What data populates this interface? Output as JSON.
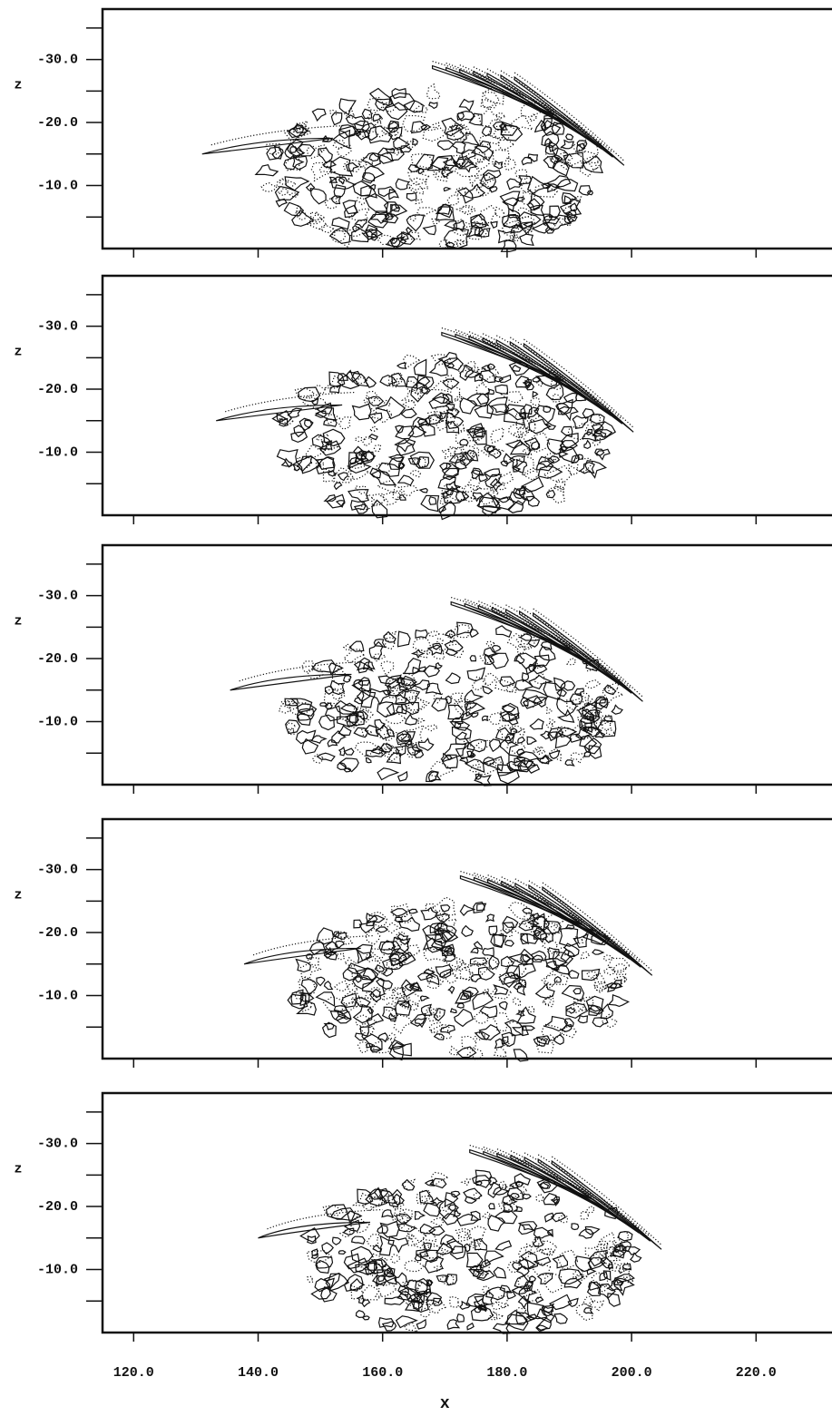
{
  "chart_data": [
    {
      "type": "contour",
      "ylabel": "z",
      "xlim": [
        115,
        232.2
      ],
      "ylim": [
        0,
        -38
      ],
      "xticks": [
        120,
        140,
        160,
        180,
        200,
        220
      ],
      "yticks": [
        {
          "value": -30,
          "label": "-30.0"
        },
        {
          "value": -20,
          "label": "-20.0"
        },
        {
          "value": -10,
          "label": "-10.0"
        }
      ],
      "yminor_ticks": [
        -35,
        -25,
        -15,
        -5
      ]
    },
    {
      "type": "contour",
      "ylabel": "z",
      "xlim": [
        115,
        232.2
      ],
      "ylim": [
        0,
        -38
      ],
      "xticks": [
        120,
        140,
        160,
        180,
        200,
        220
      ],
      "yticks": [
        {
          "value": -30,
          "label": "-30.0"
        },
        {
          "value": -20,
          "label": "-20.0"
        },
        {
          "value": -10,
          "label": "-10.0"
        }
      ],
      "yminor_ticks": [
        -35,
        -25,
        -15,
        -5
      ]
    },
    {
      "type": "contour",
      "ylabel": "z",
      "xlim": [
        115,
        232.2
      ],
      "ylim": [
        0,
        -38
      ],
      "xticks": [
        120,
        140,
        160,
        180,
        200,
        220
      ],
      "yticks": [
        {
          "value": -30,
          "label": "-30.0"
        },
        {
          "value": -20,
          "label": "-20.0"
        },
        {
          "value": -10,
          "label": "-10.0"
        }
      ],
      "yminor_ticks": [
        -35,
        -25,
        -15,
        -5
      ]
    },
    {
      "type": "contour",
      "ylabel": "z",
      "xlim": [
        115,
        232.2
      ],
      "ylim": [
        0,
        -38
      ],
      "xticks": [
        120,
        140,
        160,
        180,
        200,
        220
      ],
      "yticks": [
        {
          "value": -30,
          "label": "-30.0"
        },
        {
          "value": -20,
          "label": "-20.0"
        },
        {
          "value": -10,
          "label": "-10.0"
        }
      ],
      "yminor_ticks": [
        -35,
        -25,
        -15,
        -5
      ]
    },
    {
      "type": "contour",
      "ylabel": "z",
      "xlabel": "x",
      "xlim": [
        115,
        232.2
      ],
      "ylim": [
        0,
        -38
      ],
      "xticks": [
        {
          "value": 120,
          "label": "120.0"
        },
        {
          "value": 140,
          "label": "140.0"
        },
        {
          "value": 160,
          "label": "160.0"
        },
        {
          "value": 180,
          "label": "180.0"
        },
        {
          "value": 200,
          "label": "200.0"
        },
        {
          "value": 220,
          "label": "220.0"
        }
      ],
      "yticks": [
        {
          "value": -30,
          "label": "-30.0"
        },
        {
          "value": -20,
          "label": "-20.0"
        },
        {
          "value": -10,
          "label": "-10.0"
        }
      ],
      "yminor_ticks": [
        -35,
        -25,
        -15,
        -5
      ]
    }
  ]
}
